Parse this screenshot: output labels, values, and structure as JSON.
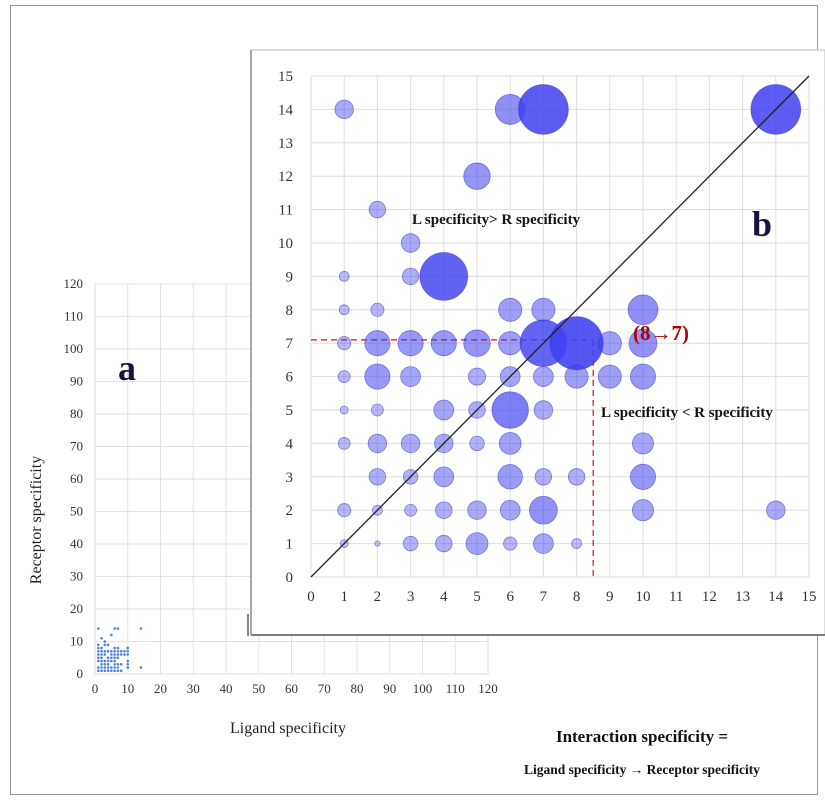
{
  "chart_data": [
    {
      "panel": "a",
      "type": "scatter",
      "xlabel": "Ligand specificity",
      "ylabel": "Receptor specificity",
      "xlim": [
        0,
        120
      ],
      "ylim": [
        0,
        120
      ],
      "xticks": [
        0,
        10,
        20,
        30,
        40,
        50,
        60,
        70,
        80,
        90,
        100,
        110,
        120
      ],
      "yticks": [
        0,
        10,
        20,
        30,
        40,
        50,
        60,
        70,
        80,
        90,
        100,
        110,
        120
      ],
      "grid": true,
      "color": "#4a7fe0",
      "points": [
        [
          1,
          14
        ],
        [
          1,
          9
        ],
        [
          1,
          8
        ],
        [
          1,
          7
        ],
        [
          1,
          6
        ],
        [
          1,
          5
        ],
        [
          1,
          4
        ],
        [
          1,
          2
        ],
        [
          1,
          1
        ],
        [
          2,
          11
        ],
        [
          2,
          8
        ],
        [
          2,
          7
        ],
        [
          2,
          6
        ],
        [
          2,
          5
        ],
        [
          2,
          4
        ],
        [
          2,
          3
        ],
        [
          2,
          2
        ],
        [
          2,
          1
        ],
        [
          3,
          10
        ],
        [
          3,
          9
        ],
        [
          3,
          7
        ],
        [
          3,
          6
        ],
        [
          3,
          4
        ],
        [
          3,
          3
        ],
        [
          3,
          2
        ],
        [
          3,
          1
        ],
        [
          4,
          9
        ],
        [
          4,
          7
        ],
        [
          4,
          5
        ],
        [
          4,
          4
        ],
        [
          4,
          3
        ],
        [
          4,
          2
        ],
        [
          4,
          1
        ],
        [
          5,
          12
        ],
        [
          5,
          7
        ],
        [
          5,
          6
        ],
        [
          5,
          5
        ],
        [
          5,
          4
        ],
        [
          5,
          2
        ],
        [
          5,
          1
        ],
        [
          6,
          14
        ],
        [
          6,
          8
        ],
        [
          6,
          7
        ],
        [
          6,
          6
        ],
        [
          6,
          5
        ],
        [
          6,
          4
        ],
        [
          6,
          3
        ],
        [
          6,
          2
        ],
        [
          6,
          1
        ],
        [
          7,
          14
        ],
        [
          7,
          8
        ],
        [
          7,
          7
        ],
        [
          7,
          6
        ],
        [
          7,
          5
        ],
        [
          7,
          3
        ],
        [
          7,
          2
        ],
        [
          7,
          1
        ],
        [
          8,
          7
        ],
        [
          8,
          6
        ],
        [
          8,
          3
        ],
        [
          8,
          1
        ],
        [
          9,
          7
        ],
        [
          9,
          6
        ],
        [
          10,
          8
        ],
        [
          10,
          7
        ],
        [
          10,
          6
        ],
        [
          10,
          4
        ],
        [
          10,
          3
        ],
        [
          10,
          2
        ],
        [
          14,
          14
        ],
        [
          14,
          2
        ]
      ]
    },
    {
      "panel": "b",
      "type": "scatter",
      "xlim": [
        0,
        15
      ],
      "ylim": [
        0,
        15
      ],
      "xticks": [
        0,
        1,
        2,
        3,
        4,
        5,
        6,
        7,
        8,
        9,
        10,
        11,
        12,
        13,
        14,
        15
      ],
      "yticks": [
        0,
        1,
        2,
        3,
        4,
        5,
        6,
        7,
        8,
        9,
        10,
        11,
        12,
        13,
        14,
        15
      ],
      "grid": true,
      "diagonal": true,
      "bubble_color": "#4040f0",
      "points": [
        {
          "x": 1,
          "y": 14,
          "s": 0.28
        },
        {
          "x": 6,
          "y": 14,
          "s": 0.45
        },
        {
          "x": 7,
          "y": 14,
          "s": 0.75
        },
        {
          "x": 14,
          "y": 14,
          "s": 0.75
        },
        {
          "x": 5,
          "y": 12,
          "s": 0.4
        },
        {
          "x": 2,
          "y": 11,
          "s": 0.25
        },
        {
          "x": 3,
          "y": 10,
          "s": 0.28
        },
        {
          "x": 1,
          "y": 9,
          "s": 0.15
        },
        {
          "x": 3,
          "y": 9,
          "s": 0.25
        },
        {
          "x": 4,
          "y": 9,
          "s": 0.72
        },
        {
          "x": 1,
          "y": 8,
          "s": 0.15
        },
        {
          "x": 2,
          "y": 8,
          "s": 0.2
        },
        {
          "x": 6,
          "y": 8,
          "s": 0.35
        },
        {
          "x": 7,
          "y": 8,
          "s": 0.35
        },
        {
          "x": 10,
          "y": 8,
          "s": 0.45
        },
        {
          "x": 1,
          "y": 7,
          "s": 0.2
        },
        {
          "x": 2,
          "y": 7,
          "s": 0.38
        },
        {
          "x": 3,
          "y": 7,
          "s": 0.38
        },
        {
          "x": 4,
          "y": 7,
          "s": 0.38
        },
        {
          "x": 5,
          "y": 7,
          "s": 0.4
        },
        {
          "x": 6,
          "y": 7,
          "s": 0.35
        },
        {
          "x": 7,
          "y": 7,
          "s": 0.7
        },
        {
          "x": 8,
          "y": 7,
          "s": 0.8
        },
        {
          "x": 9,
          "y": 7,
          "s": 0.35
        },
        {
          "x": 10,
          "y": 7,
          "s": 0.42
        },
        {
          "x": 1,
          "y": 6,
          "s": 0.18
        },
        {
          "x": 2,
          "y": 6,
          "s": 0.38
        },
        {
          "x": 3,
          "y": 6,
          "s": 0.3
        },
        {
          "x": 5,
          "y": 6,
          "s": 0.26
        },
        {
          "x": 6,
          "y": 6,
          "s": 0.3
        },
        {
          "x": 7,
          "y": 6,
          "s": 0.3
        },
        {
          "x": 8,
          "y": 6,
          "s": 0.35
        },
        {
          "x": 9,
          "y": 6,
          "s": 0.35
        },
        {
          "x": 10,
          "y": 6,
          "s": 0.38
        },
        {
          "x": 1,
          "y": 5,
          "s": 0.12
        },
        {
          "x": 2,
          "y": 5,
          "s": 0.18
        },
        {
          "x": 4,
          "y": 5,
          "s": 0.3
        },
        {
          "x": 5,
          "y": 5,
          "s": 0.25
        },
        {
          "x": 6,
          "y": 5,
          "s": 0.55
        },
        {
          "x": 7,
          "y": 5,
          "s": 0.28
        },
        {
          "x": 1,
          "y": 4,
          "s": 0.18
        },
        {
          "x": 2,
          "y": 4,
          "s": 0.28
        },
        {
          "x": 3,
          "y": 4,
          "s": 0.28
        },
        {
          "x": 4,
          "y": 4,
          "s": 0.28
        },
        {
          "x": 5,
          "y": 4,
          "s": 0.22
        },
        {
          "x": 6,
          "y": 4,
          "s": 0.33
        },
        {
          "x": 10,
          "y": 4,
          "s": 0.32
        },
        {
          "x": 2,
          "y": 3,
          "s": 0.25
        },
        {
          "x": 3,
          "y": 3,
          "s": 0.22
        },
        {
          "x": 4,
          "y": 3,
          "s": 0.3
        },
        {
          "x": 6,
          "y": 3,
          "s": 0.37
        },
        {
          "x": 7,
          "y": 3,
          "s": 0.25
        },
        {
          "x": 8,
          "y": 3,
          "s": 0.25
        },
        {
          "x": 10,
          "y": 3,
          "s": 0.38
        },
        {
          "x": 1,
          "y": 2,
          "s": 0.2
        },
        {
          "x": 2,
          "y": 2,
          "s": 0.15
        },
        {
          "x": 3,
          "y": 2,
          "s": 0.18
        },
        {
          "x": 4,
          "y": 2,
          "s": 0.25
        },
        {
          "x": 5,
          "y": 2,
          "s": 0.28
        },
        {
          "x": 6,
          "y": 2,
          "s": 0.3
        },
        {
          "x": 7,
          "y": 2,
          "s": 0.42
        },
        {
          "x": 10,
          "y": 2,
          "s": 0.32
        },
        {
          "x": 14,
          "y": 2,
          "s": 0.28
        },
        {
          "x": 1,
          "y": 1,
          "s": 0.12
        },
        {
          "x": 2,
          "y": 1,
          "s": 0.08
        },
        {
          "x": 3,
          "y": 1,
          "s": 0.22
        },
        {
          "x": 4,
          "y": 1,
          "s": 0.25
        },
        {
          "x": 5,
          "y": 1,
          "s": 0.33
        },
        {
          "x": 6,
          "y": 1,
          "s": 0.2
        },
        {
          "x": 7,
          "y": 1,
          "s": 0.3
        },
        {
          "x": 8,
          "y": 1,
          "s": 0.15
        }
      ],
      "highlight": {
        "label": "(8→7)",
        "x": 8.5,
        "y": 7.1
      }
    }
  ],
  "annotations": {
    "panel_a_letter": "a",
    "panel_b_letter": "b",
    "upper_region": "L specificity> R specificity",
    "lower_region": "L specificity < R specificity",
    "highlight_label": "(8→7)",
    "formula_title": "Interaction specificity =",
    "formula_body": "Ligand specificity → Receptor specificity"
  }
}
